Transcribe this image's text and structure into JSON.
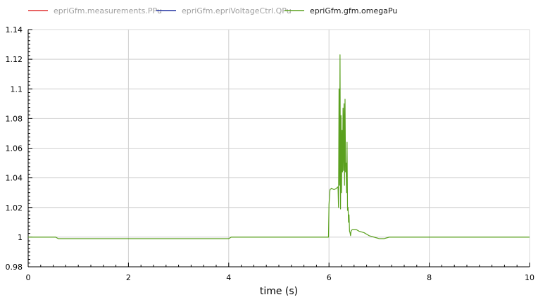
{
  "chart_data": {
    "type": "line",
    "xlabel": "time (s)",
    "ylabel": "",
    "xlim": [
      0,
      10
    ],
    "ylim": [
      0.98,
      1.14
    ],
    "x_ticks": [
      0,
      2,
      4,
      6,
      8,
      10
    ],
    "x_tick_labels": [
      "0",
      "2",
      "4",
      "6",
      "8",
      "10"
    ],
    "y_ticks": [
      0.98,
      1.0,
      1.02,
      1.04,
      1.06,
      1.08,
      1.1,
      1.12,
      1.14
    ],
    "y_tick_labels": [
      "0.98",
      "1",
      "1.02",
      "1.04",
      "1.06",
      "1.08",
      "1.1",
      "1.12",
      "1.14"
    ],
    "grid": true,
    "legend_position": "top-left",
    "legend": [
      {
        "name": "epriGfm.measurements.PPu",
        "color": "#e03030",
        "text_color": "#a0a0a0"
      },
      {
        "name": "epriGfm.epriVoltageCtrl.QPu",
        "color": "#2030a0",
        "text_color": "#a0a0a0"
      },
      {
        "name": "epriGfm.gfm.omegaPu",
        "color": "#5aa01e",
        "text_color": "#202020"
      }
    ],
    "series": [
      {
        "name": "epriGfm.gfm.omegaPu",
        "color": "#5aa01e",
        "x": [
          0,
          0.55,
          0.6,
          1.0,
          2.0,
          3.0,
          4.0,
          4.05,
          4.1,
          5.0,
          5.99,
          6.0,
          6.02,
          6.05,
          6.1,
          6.15,
          6.18,
          6.19,
          6.2,
          6.21,
          6.22,
          6.23,
          6.24,
          6.25,
          6.26,
          6.27,
          6.28,
          6.29,
          6.3,
          6.31,
          6.32,
          6.33,
          6.34,
          6.35,
          6.36,
          6.37,
          6.38,
          6.39,
          6.4,
          6.41,
          6.42,
          6.43,
          6.44,
          6.46,
          6.5,
          6.55,
          6.6,
          6.7,
          6.8,
          6.9,
          7.0,
          7.1,
          7.2,
          7.3,
          7.4,
          8.0,
          9.0,
          10.0
        ],
        "values": [
          1.0,
          1.0,
          0.999,
          0.999,
          0.999,
          0.999,
          0.999,
          1.0,
          1.0,
          1.0,
          1.0,
          1.022,
          1.032,
          1.033,
          1.032,
          1.033,
          1.034,
          1.02,
          1.1,
          1.035,
          1.123,
          1.019,
          1.082,
          1.03,
          1.072,
          1.044,
          1.087,
          1.045,
          1.09,
          1.035,
          1.093,
          1.044,
          1.05,
          1.03,
          1.064,
          1.018,
          1.02,
          1.01,
          1.015,
          1.004,
          1.003,
          1.001,
          1.004,
          1.005,
          1.005,
          1.005,
          1.004,
          1.003,
          1.001,
          1.0,
          0.999,
          0.999,
          1.0,
          1.0,
          1.0,
          1.0,
          1.0,
          1.0
        ]
      }
    ]
  }
}
